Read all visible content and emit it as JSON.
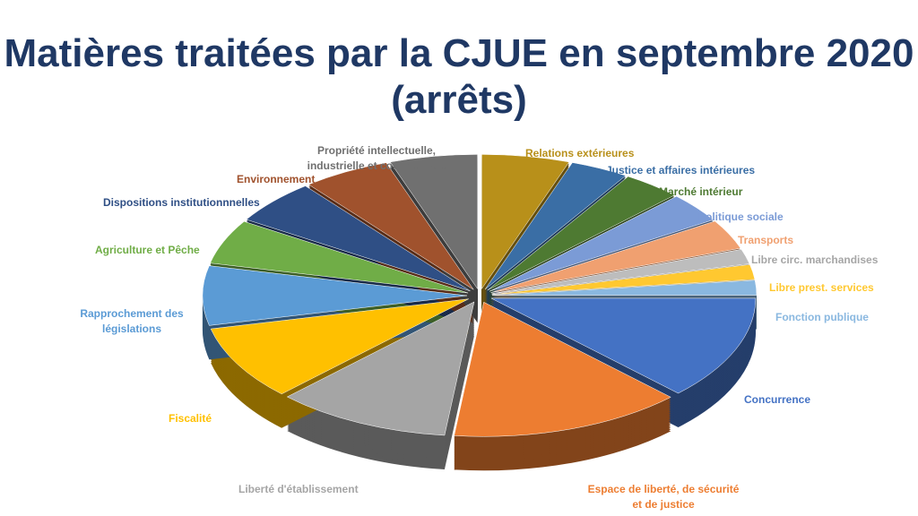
{
  "chart_data": {
    "type": "pie",
    "title": "Matières traitées par la CJUE en septembre 2020 (arrêts)",
    "style": "3d-exploded",
    "slices": [
      {
        "label": "Relations extérieures",
        "value": 3,
        "color": "#B8901A"
      },
      {
        "label": "Justice et affaires intérieures",
        "value": 2,
        "color": "#3A6EA5"
      },
      {
        "label": "Marché intérieur",
        "value": 2,
        "color": "#4E7A32"
      },
      {
        "label": "Politique sociale",
        "value": 2,
        "color": "#7B9BD6"
      },
      {
        "label": "Transports",
        "value": 2,
        "color": "#F0A070"
      },
      {
        "label": "Libre circ. marchandises",
        "value": 1,
        "color": "#BDBDBD"
      },
      {
        "label": "Libre prest. services",
        "value": 1,
        "color": "#FFC830"
      },
      {
        "label": "Fonction publique",
        "value": 1,
        "color": "#8AB8E0"
      },
      {
        "label": "Concurrence",
        "value": 7,
        "color": "#4472C4"
      },
      {
        "label": "Espace de liberté, de sécurité et de justice",
        "value": 8,
        "color": "#ED7D31"
      },
      {
        "label": "Liberté d'établissement",
        "value": 6,
        "color": "#A5A5A5"
      },
      {
        "label": "Fiscalité",
        "value": 5,
        "color": "#FFC000"
      },
      {
        "label": "Rapprochement des législations",
        "value": 4,
        "color": "#5B9BD5"
      },
      {
        "label": "Agriculture et Pêche",
        "value": 3,
        "color": "#70AD47"
      },
      {
        "label": "Dispositions institutionnnelles",
        "value": 3,
        "color": "#2F4F85"
      },
      {
        "label": "Environnement",
        "value": 3,
        "color": "#A0522D"
      },
      {
        "label": "Propriété intellectuelle, industrielle et commerciale",
        "value": 3,
        "color": "#707070"
      }
    ]
  }
}
